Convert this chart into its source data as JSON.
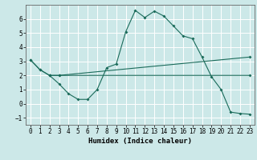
{
  "title": "",
  "xlabel": "Humidex (Indice chaleur)",
  "ylabel": "",
  "xlim": [
    -0.5,
    23.5
  ],
  "ylim": [
    -1.5,
    7.0
  ],
  "yticks": [
    -1,
    0,
    1,
    2,
    3,
    4,
    5,
    6
  ],
  "xticks": [
    0,
    1,
    2,
    3,
    4,
    5,
    6,
    7,
    8,
    9,
    10,
    11,
    12,
    13,
    14,
    15,
    16,
    17,
    18,
    19,
    20,
    21,
    22,
    23
  ],
  "bg_color": "#cce8e8",
  "line_color": "#1a6b5a",
  "grid_color": "#ffffff",
  "line1_x": [
    0,
    1,
    2,
    3,
    4,
    5,
    6,
    7,
    8,
    9,
    10,
    11,
    12,
    13,
    14,
    15,
    16,
    17,
    18,
    19,
    20,
    21,
    22,
    23
  ],
  "line1_y": [
    3.1,
    2.4,
    2.0,
    1.4,
    0.7,
    0.3,
    0.3,
    1.0,
    2.55,
    2.8,
    5.1,
    6.6,
    6.1,
    6.55,
    6.2,
    5.5,
    4.8,
    4.6,
    3.3,
    1.9,
    1.0,
    -0.6,
    -0.7,
    -0.75
  ],
  "line2_x": [
    0,
    1,
    2,
    3,
    23
  ],
  "line2_y": [
    3.1,
    2.4,
    2.0,
    2.0,
    2.0
  ],
  "line3_x": [
    2,
    3,
    23
  ],
  "line3_y": [
    2.0,
    2.0,
    3.3
  ],
  "tick_fontsize": 5.5,
  "xlabel_fontsize": 6.5
}
